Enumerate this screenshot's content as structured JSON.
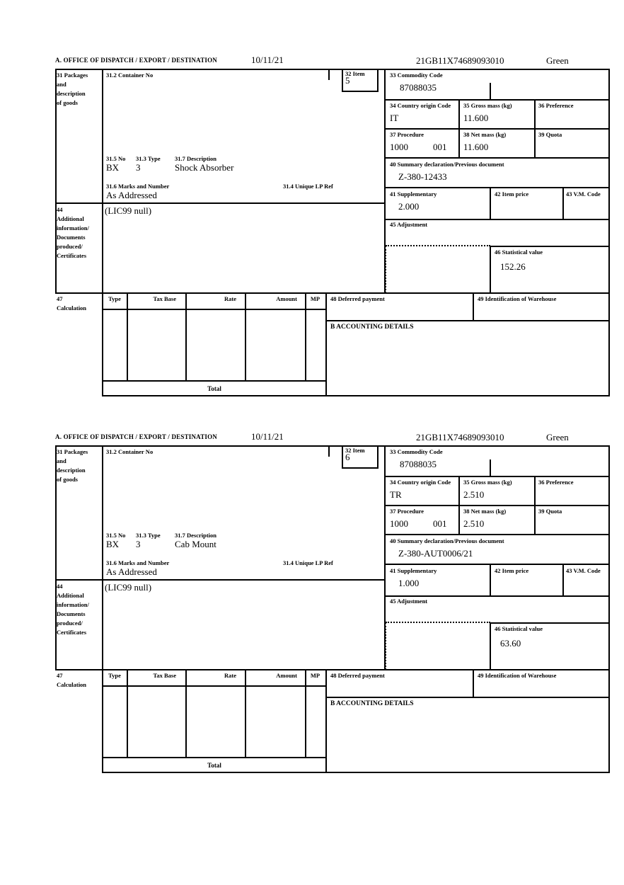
{
  "labels": {
    "office": "A.  OFFICE OF DISPATCH / EXPORT / DESTINATION",
    "box31": [
      "31 Packages",
      "and",
      "description",
      "of goods"
    ],
    "container": "31.2 Container No",
    "item": "32 Item",
    "commodity": "33 Commodity Code",
    "origin": "34 Country origin Code",
    "gross_mass": "35 Gross mass (kg)",
    "preference": "36 Preference",
    "procedure": "37 Procedure",
    "net_mass": "38 Net mass (kg)",
    "quota": "39 Quota",
    "pkg_no": "31.5 No",
    "pkg_type": "31.3 Type",
    "pkg_description": "31.7 Description",
    "summary": "40 Summary declaration/Previous document",
    "marks": "31.6 Marks and Number",
    "unique_lp": "31.4 Unique LP Ref",
    "supplementary": "41 Supplementary",
    "item_price": "42 Item price",
    "vm_code": "43 V.M. Code",
    "box44": [
      "44",
      "Additional",
      "information/",
      "Documents",
      "produced/",
      "Certificates"
    ],
    "adjustment": "45 Adjustment",
    "statistical": "46 Statistical value",
    "box47": [
      "47",
      "Calculation"
    ],
    "calc_columns": [
      "Type",
      "Tax Base",
      "Rate",
      "Amount",
      "MP"
    ],
    "deferred": "48 Deferred payment",
    "warehouse": "49 Identification of Warehouse",
    "accounting": "B ACCOUNTING DETAILS",
    "total": "Total"
  },
  "sections": [
    {
      "date": "10/11/21",
      "mrn": "21GB11X74689093010",
      "routing": "Green",
      "item_no": "5",
      "commodity_code": "87088035",
      "origin_code": "IT",
      "gross_mass": "11.600",
      "procedure_code": "1000",
      "procedure_code2": "001",
      "net_mass": "11.600",
      "package_no": "BX",
      "package_type": "3",
      "goods_description": "Shock Absorber",
      "previous_document": "Z-380-12433",
      "marks_value": "As Addressed",
      "supplementary_units": "2.000",
      "additional_info": "(LIC99 null)",
      "statistical_value": "152.26"
    },
    {
      "date": "10/11/21",
      "mrn": "21GB11X74689093010",
      "routing": "Green",
      "item_no": "6",
      "commodity_code": "87088035",
      "origin_code": "TR",
      "gross_mass": "2.510",
      "procedure_code": "1000",
      "procedure_code2": "001",
      "net_mass": "2.510",
      "package_no": "BX",
      "package_type": "3",
      "goods_description": "Cab Mount",
      "previous_document": "Z-380-AUT0006/21",
      "marks_value": "As Addressed",
      "supplementary_units": "1.000",
      "additional_info": "(LIC99 null)",
      "statistical_value": "63.60"
    }
  ]
}
